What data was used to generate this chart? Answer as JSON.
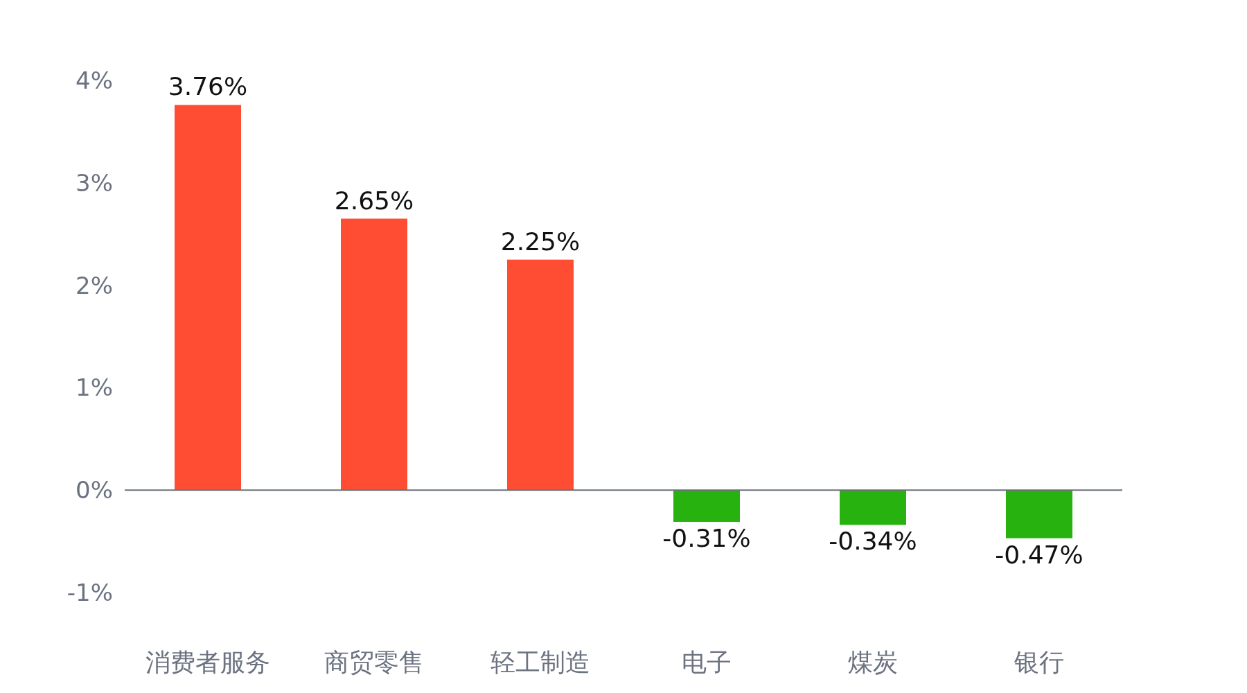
{
  "chart_data": {
    "type": "bar",
    "categories": [
      "消费者服务",
      "商贸零售",
      "轻工制造",
      "电子",
      "煤炭",
      "银行"
    ],
    "values": [
      3.76,
      2.65,
      2.25,
      -0.31,
      -0.34,
      -0.47
    ],
    "colors": [
      "#ff4d33",
      "#ff4d33",
      "#ff4d33",
      "#27b20f",
      "#27b20f",
      "#27b20f"
    ],
    "value_labels": [
      "3.76%",
      "2.65%",
      "2.25%",
      "-0.31%",
      "-0.34%",
      "-0.47%"
    ],
    "ylim": [
      -1,
      4
    ],
    "yticks": [
      {
        "value": -1,
        "label": "-1%"
      },
      {
        "value": 0,
        "label": "0%"
      },
      {
        "value": 1,
        "label": "1%"
      },
      {
        "value": 2,
        "label": "2%"
      },
      {
        "value": 3,
        "label": "3%"
      },
      {
        "value": 4,
        "label": "4%"
      }
    ]
  }
}
